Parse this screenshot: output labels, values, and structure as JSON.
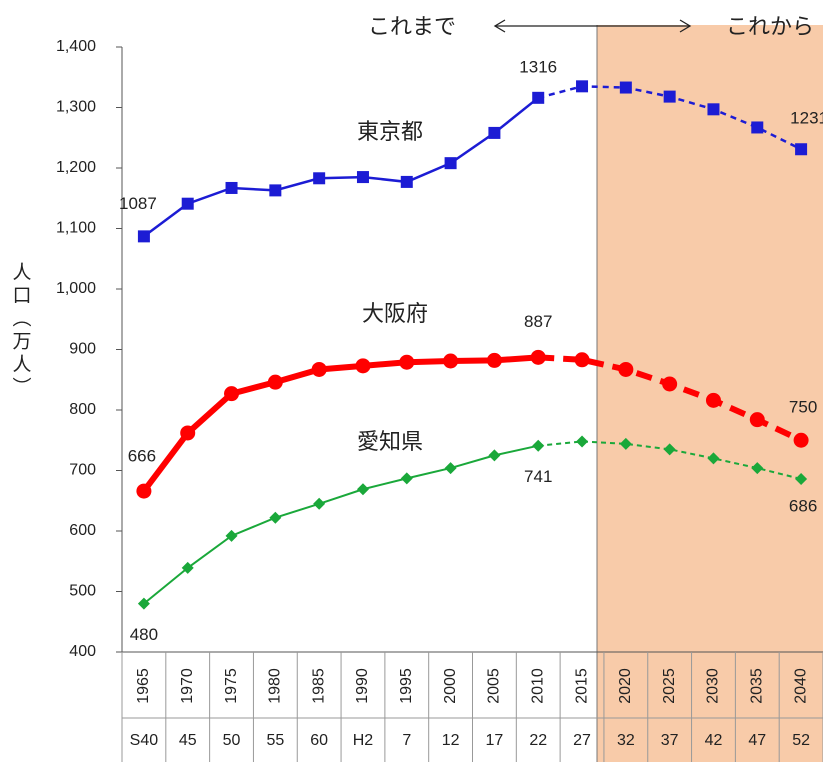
{
  "chart_data": {
    "type": "line",
    "annotations": [
      "これまで",
      "これから"
    ],
    "y_label": "人口（万人）",
    "categories": [
      "1965",
      "1970",
      "1975",
      "1980",
      "1985",
      "1990",
      "1995",
      "2000",
      "2005",
      "2010",
      "2015",
      "2020",
      "2025",
      "2030",
      "2035",
      "2040"
    ],
    "era_categories": [
      "S40",
      "45",
      "50",
      "55",
      "60",
      "H2",
      "7",
      "12",
      "17",
      "22",
      "27",
      "32",
      "37",
      "42",
      "47",
      "52"
    ],
    "ylim": [
      400,
      1400
    ],
    "yticks": [
      400,
      500,
      600,
      700,
      800,
      900,
      {
        "value": 1000,
        "label": "1,000"
      },
      {
        "value": 1100,
        "label": "1,100"
      },
      {
        "value": 1200,
        "label": "1,200"
      },
      {
        "value": 1300,
        "label": "1,300"
      },
      {
        "value": 1400,
        "label": "1,400"
      }
    ],
    "grid": false,
    "series": [
      {
        "name": "東京都",
        "color": "#1c1cd4",
        "values": [
          1087,
          1141,
          1167,
          1163,
          1183,
          1185,
          1177,
          1208,
          1258,
          1316,
          1335,
          1333,
          1318,
          1297,
          1267,
          1231
        ]
      },
      {
        "name": "大阪府",
        "color": "#ff0000",
        "values": [
          666,
          762,
          827,
          846,
          867,
          873,
          879,
          881,
          882,
          887,
          883,
          867,
          843,
          816,
          784,
          750
        ]
      },
      {
        "name": "愛知県",
        "color": "#1aa83a",
        "values": [
          480,
          539,
          592,
          622,
          645,
          669,
          687,
          704,
          725,
          741,
          748,
          744,
          735,
          720,
          704,
          686
        ]
      }
    ]
  }
}
